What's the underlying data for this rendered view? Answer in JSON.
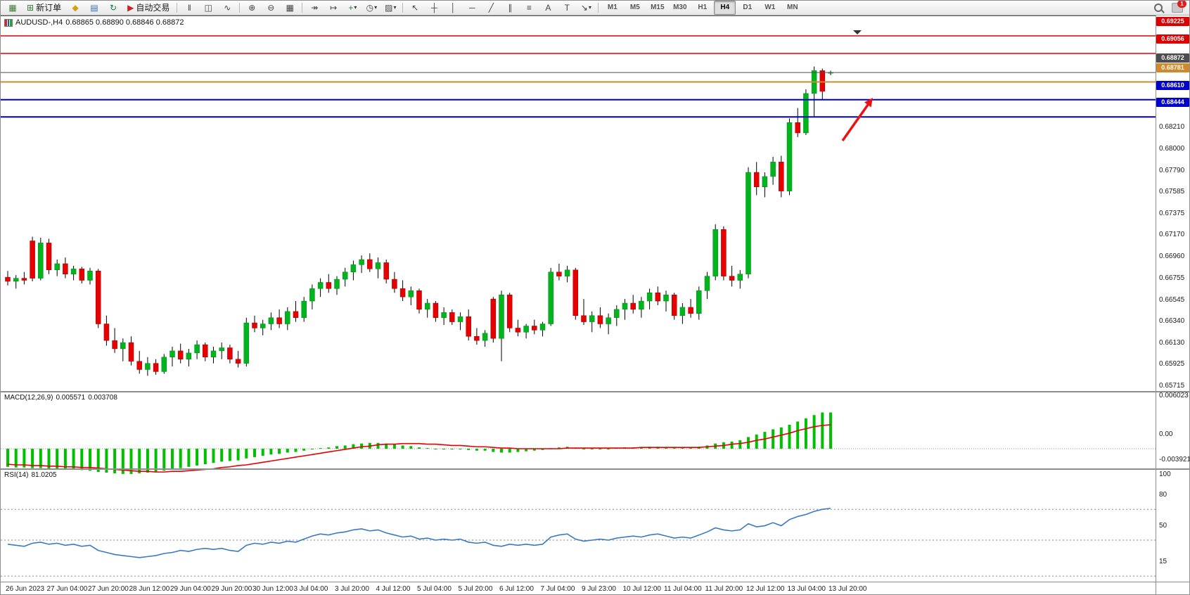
{
  "toolbar": {
    "new_order": "新订单",
    "auto_trading": "自动交易",
    "file_icons": [
      {
        "name": "new-chart-icon",
        "glyph": "▦",
        "color": "#3a7d34"
      },
      {
        "name": "market-watch-icon",
        "glyph": "◆",
        "color": "#d4a017"
      },
      {
        "name": "data-window-icon",
        "glyph": "▤",
        "color": "#3a6fb0"
      },
      {
        "name": "navigator-icon",
        "glyph": "↻",
        "color": "#0b8043"
      }
    ],
    "new_order_icon": {
      "name": "new-order-icon",
      "glyph": "⊞",
      "color": "#2e7d32"
    },
    "auto_trading_icon": {
      "name": "auto-trading-icon",
      "glyph": "▶",
      "color": "#cc2222"
    },
    "chart_type_icons": [
      {
        "name": "bar-chart-icon",
        "glyph": "‖"
      },
      {
        "name": "candlestick-chart-icon",
        "glyph": "◫"
      },
      {
        "name": "line-chart-icon",
        "glyph": "∿"
      }
    ],
    "zoom_icons": [
      {
        "name": "zoom-in-icon",
        "glyph": "⊕"
      },
      {
        "name": "zoom-out-icon",
        "glyph": "⊖"
      },
      {
        "name": "tile-windows-icon",
        "glyph": "▦"
      }
    ],
    "tool_icons": [
      {
        "name": "auto-scroll-icon",
        "glyph": "↠"
      },
      {
        "name": "chart-shift-icon",
        "glyph": "↦"
      },
      {
        "name": "indicators-icon",
        "glyph": "+",
        "color": "#2e7d32",
        "caret": true
      },
      {
        "name": "periods-icon",
        "glyph": "◷",
        "caret": true
      },
      {
        "name": "templates-icon",
        "glyph": "▨",
        "caret": true
      }
    ],
    "draw_icons": [
      {
        "name": "cursor-icon",
        "glyph": "↖"
      },
      {
        "name": "crosshair-icon",
        "glyph": "┼"
      },
      {
        "name": "vertical-line-icon",
        "glyph": "│"
      },
      {
        "name": "horizontal-line-icon",
        "glyph": "─"
      },
      {
        "name": "trendline-icon",
        "glyph": "╱"
      },
      {
        "name": "channel-icon",
        "glyph": "∥"
      },
      {
        "name": "fibonacci-icon",
        "glyph": "≡"
      },
      {
        "name": "text-icon",
        "glyph": "A"
      },
      {
        "name": "text-label-icon",
        "glyph": "T"
      },
      {
        "name": "shapes-icon",
        "glyph": "↘",
        "caret": true
      }
    ],
    "timeframes": [
      "M1",
      "M5",
      "M15",
      "M30",
      "H1",
      "H4",
      "D1",
      "W1",
      "MN"
    ],
    "active_timeframe": "H4",
    "notification_badge": "1"
  },
  "chart": {
    "title": "AUDUSD-,H4",
    "ohlc_text": "0.68865 0.68890 0.68846 0.68872",
    "price_axis": [
      "0.68210",
      "0.68000",
      "0.67790",
      "0.67585",
      "0.67375",
      "0.67170",
      "0.66960",
      "0.66755",
      "0.66545",
      "0.66340",
      "0.66130",
      "0.65925",
      "0.65715"
    ],
    "badges": [
      {
        "value": "0.69225",
        "bg": "#dd0000"
      },
      {
        "value": "0.69056",
        "bg": "#dd0000"
      },
      {
        "value": "0.68872",
        "bg": "#4d4d4d"
      },
      {
        "value": "0.68781",
        "bg": "#cf8a2d"
      },
      {
        "value": "0.68610",
        "bg": "#0000cc"
      },
      {
        "value": "0.68444",
        "bg": "#0000cc"
      }
    ],
    "time_axis": [
      "26 Jun 2023",
      "27 Jun 04:00",
      "27 Jun 20:00",
      "28 Jun 12:00",
      "29 Jun 04:00",
      "29 Jun 20:00",
      "30 Jun 12:00",
      "3 Jul 04:00",
      "3 Jul 20:00",
      "4 Jul 12:00",
      "5 Jul 04:00",
      "5 Jul 20:00",
      "6 Jul 12:00",
      "7 Jul 04:00",
      "9 Jul 23:00",
      "10 Jul 12:00",
      "11 Jul 04:00",
      "11 Jul 20:00",
      "12 Jul 12:00",
      "13 Jul 04:00",
      "13 Jul 20:00"
    ]
  },
  "chart_data": {
    "type": "candlestick",
    "symbol": "AUDUSD",
    "timeframe": "H4",
    "up_color": "#00b41e",
    "down_color": "#e60000",
    "wick_color": "#000000",
    "candles": [
      [
        0.669,
        0.6696,
        0.6682,
        0.6686
      ],
      [
        0.6686,
        0.6692,
        0.6679,
        0.6689
      ],
      [
        0.6689,
        0.6695,
        0.6683,
        0.6687
      ],
      [
        0.6725,
        0.6729,
        0.6686,
        0.6689
      ],
      [
        0.6689,
        0.6728,
        0.6687,
        0.6723
      ],
      [
        0.6723,
        0.6727,
        0.6693,
        0.6697
      ],
      [
        0.6697,
        0.6707,
        0.6691,
        0.6703
      ],
      [
        0.6703,
        0.6709,
        0.6689,
        0.6693
      ],
      [
        0.6693,
        0.6701,
        0.6687,
        0.6698
      ],
      [
        0.6698,
        0.67,
        0.6684,
        0.6687
      ],
      [
        0.6687,
        0.6699,
        0.6683,
        0.6696
      ],
      [
        0.6696,
        0.6698,
        0.6641,
        0.6645
      ],
      [
        0.6645,
        0.6653,
        0.6624,
        0.6629
      ],
      [
        0.6629,
        0.6641,
        0.6617,
        0.6621
      ],
      [
        0.6621,
        0.6631,
        0.6609,
        0.6627
      ],
      [
        0.6627,
        0.6633,
        0.6605,
        0.6609
      ],
      [
        0.6609,
        0.6619,
        0.6597,
        0.6601
      ],
      [
        0.6601,
        0.6613,
        0.6595,
        0.6607
      ],
      [
        0.6607,
        0.6611,
        0.6596,
        0.6599
      ],
      [
        0.6599,
        0.6616,
        0.6597,
        0.6613
      ],
      [
        0.6613,
        0.6623,
        0.6604,
        0.6619
      ],
      [
        0.6619,
        0.6626,
        0.6607,
        0.6611
      ],
      [
        0.6611,
        0.6621,
        0.6604,
        0.6617
      ],
      [
        0.6617,
        0.6629,
        0.6611,
        0.6625
      ],
      [
        0.6625,
        0.6627,
        0.6609,
        0.6613
      ],
      [
        0.6613,
        0.6623,
        0.6607,
        0.6619
      ],
      [
        0.6619,
        0.6627,
        0.6611,
        0.6622
      ],
      [
        0.6622,
        0.6625,
        0.6607,
        0.6611
      ],
      [
        0.6611,
        0.6619,
        0.6603,
        0.6607
      ],
      [
        0.6607,
        0.6651,
        0.6604,
        0.6646
      ],
      [
        0.6646,
        0.6653,
        0.6637,
        0.6641
      ],
      [
        0.6641,
        0.6649,
        0.6634,
        0.6645
      ],
      [
        0.6645,
        0.6656,
        0.6639,
        0.6651
      ],
      [
        0.6651,
        0.6659,
        0.6641,
        0.6645
      ],
      [
        0.6645,
        0.6661,
        0.6639,
        0.6657
      ],
      [
        0.6657,
        0.6667,
        0.6647,
        0.6651
      ],
      [
        0.6651,
        0.6671,
        0.6647,
        0.6667
      ],
      [
        0.6667,
        0.6683,
        0.6659,
        0.6679
      ],
      [
        0.6679,
        0.6689,
        0.6671,
        0.6685
      ],
      [
        0.6685,
        0.6693,
        0.6675,
        0.6679
      ],
      [
        0.6679,
        0.6691,
        0.6673,
        0.6688
      ],
      [
        0.6688,
        0.6699,
        0.6681,
        0.6695
      ],
      [
        0.6695,
        0.6706,
        0.6687,
        0.6702
      ],
      [
        0.6702,
        0.6711,
        0.6694,
        0.6707
      ],
      [
        0.6707,
        0.6713,
        0.6695,
        0.6698
      ],
      [
        0.6698,
        0.6709,
        0.6689,
        0.6704
      ],
      [
        0.6704,
        0.6707,
        0.6684,
        0.6688
      ],
      [
        0.6688,
        0.6695,
        0.6675,
        0.6679
      ],
      [
        0.6679,
        0.6687,
        0.6667,
        0.6671
      ],
      [
        0.6671,
        0.6681,
        0.6663,
        0.6677
      ],
      [
        0.6677,
        0.6679,
        0.6655,
        0.6659
      ],
      [
        0.6659,
        0.6669,
        0.6651,
        0.6665
      ],
      [
        0.6665,
        0.6667,
        0.6647,
        0.6651
      ],
      [
        0.6651,
        0.6661,
        0.6644,
        0.6656
      ],
      [
        0.6656,
        0.6659,
        0.6644,
        0.6647
      ],
      [
        0.6647,
        0.6656,
        0.6639,
        0.6652
      ],
      [
        0.6652,
        0.6659,
        0.6629,
        0.6633
      ],
      [
        0.6633,
        0.6641,
        0.6625,
        0.6629
      ],
      [
        0.6629,
        0.6639,
        0.6623,
        0.6636
      ],
      [
        0.6669,
        0.6671,
        0.6627,
        0.6631
      ],
      [
        0.6631,
        0.6677,
        0.6609,
        0.6673
      ],
      [
        0.6673,
        0.6675,
        0.6637,
        0.6641
      ],
      [
        0.6641,
        0.6649,
        0.6633,
        0.6637
      ],
      [
        0.6637,
        0.6645,
        0.6631,
        0.6643
      ],
      [
        0.6643,
        0.6649,
        0.6635,
        0.6639
      ],
      [
        0.6639,
        0.6647,
        0.6633,
        0.6645
      ],
      [
        0.6645,
        0.6699,
        0.6643,
        0.6695
      ],
      [
        0.6695,
        0.6703,
        0.6687,
        0.6691
      ],
      [
        0.6691,
        0.6701,
        0.6685,
        0.6697
      ],
      [
        0.6697,
        0.6699,
        0.6649,
        0.6653
      ],
      [
        0.6653,
        0.6669,
        0.6644,
        0.6647
      ],
      [
        0.6647,
        0.6657,
        0.6637,
        0.6653
      ],
      [
        0.6653,
        0.6661,
        0.6641,
        0.6645
      ],
      [
        0.6645,
        0.6655,
        0.6635,
        0.6651
      ],
      [
        0.6651,
        0.6663,
        0.6643,
        0.6659
      ],
      [
        0.6659,
        0.6669,
        0.6649,
        0.6665
      ],
      [
        0.6665,
        0.6673,
        0.6655,
        0.6659
      ],
      [
        0.6659,
        0.6671,
        0.6651,
        0.6667
      ],
      [
        0.6667,
        0.6679,
        0.6659,
        0.6675
      ],
      [
        0.6675,
        0.6681,
        0.6663,
        0.6667
      ],
      [
        0.6667,
        0.6677,
        0.6657,
        0.6673
      ],
      [
        0.6673,
        0.6675,
        0.6649,
        0.6653
      ],
      [
        0.6653,
        0.6665,
        0.6645,
        0.6661
      ],
      [
        0.6661,
        0.6669,
        0.6651,
        0.6655
      ],
      [
        0.6655,
        0.6681,
        0.6649,
        0.6677
      ],
      [
        0.6677,
        0.6695,
        0.6669,
        0.6691
      ],
      [
        0.6691,
        0.6741,
        0.6687,
        0.6736
      ],
      [
        0.6736,
        0.6739,
        0.6687,
        0.6691
      ],
      [
        0.6691,
        0.6701,
        0.6681,
        0.6687
      ],
      [
        0.6687,
        0.6697,
        0.6679,
        0.6693
      ],
      [
        0.6693,
        0.6796,
        0.6689,
        0.6791
      ],
      [
        0.6791,
        0.6801,
        0.6769,
        0.6777
      ],
      [
        0.6777,
        0.6791,
        0.6767,
        0.6787
      ],
      [
        0.6787,
        0.6806,
        0.6779,
        0.6801
      ],
      [
        0.6801,
        0.6807,
        0.6767,
        0.6773
      ],
      [
        0.6773,
        0.6843,
        0.6769,
        0.6839
      ],
      [
        0.6839,
        0.6853,
        0.6825,
        0.6829
      ],
      [
        0.6829,
        0.6871,
        0.6827,
        0.6867
      ],
      [
        0.6867,
        0.6893,
        0.6845,
        0.6889
      ],
      [
        0.6889,
        0.6891,
        0.6861,
        0.6869
      ],
      [
        0.68865,
        0.6889,
        0.68846,
        0.68872
      ]
    ],
    "hlines": [
      {
        "price": 0.69225,
        "color": "#dd0000",
        "width": 1.5
      },
      {
        "price": 0.69056,
        "color": "#dd0000",
        "width": 1.5
      },
      {
        "price": 0.68872,
        "color": "#4d4d4d",
        "width": 1
      },
      {
        "price": 0.68781,
        "color": "#cf8a2d",
        "width": 2
      },
      {
        "price": 0.6861,
        "color": "#0000cc",
        "width": 2
      },
      {
        "price": 0.68444,
        "color": "#0000cc",
        "width": 2
      }
    ],
    "arrow": {
      "color": "#ee1111"
    },
    "macd": {
      "label": "MACD(12,26,9)",
      "value_main": "0.005571",
      "value_signal": "0.003708",
      "scale": [
        "0.006023",
        "0.00",
        "-0.003921"
      ],
      "hist_color": "#00c000",
      "signal_color": "#e60000",
      "histogram": [
        -0.0028,
        -0.0029,
        -0.0029,
        -0.003,
        -0.003,
        -0.0031,
        -0.0031,
        -0.0032,
        -0.0032,
        -0.0033,
        -0.0034,
        -0.0036,
        -0.0037,
        -0.0038,
        -0.0039,
        -0.0039,
        -0.0038,
        -0.0037,
        -0.0036,
        -0.0034,
        -0.0032,
        -0.003,
        -0.0028,
        -0.0026,
        -0.0024,
        -0.0022,
        -0.002,
        -0.0019,
        -0.0018,
        -0.0015,
        -0.0013,
        -0.0011,
        -0.0009,
        -0.0008,
        -0.0006,
        -0.0005,
        -0.0003,
        -0.0001,
        0.0001,
        0.0002,
        0.0004,
        0.0005,
        0.0007,
        0.0008,
        0.0009,
        0.0009,
        0.0008,
        0.0007,
        0.0005,
        0.0004,
        0.0002,
        0.0001,
        0.0,
        -0.0001,
        -0.0001,
        0.0,
        -0.0002,
        -0.0003,
        -0.0003,
        -0.0005,
        -0.0006,
        -0.0006,
        -0.0005,
        -0.0004,
        -0.0003,
        -0.0002,
        0.0001,
        0.0002,
        0.0003,
        0.0001,
        -0.0001,
        -0.0001,
        0.0,
        0.0,
        0.0001,
        0.0002,
        0.0002,
        0.0002,
        0.0003,
        0.0003,
        0.0002,
        0.0002,
        0.0002,
        0.0002,
        0.0003,
        0.0005,
        0.0008,
        0.001,
        0.0011,
        0.0013,
        0.0018,
        0.0022,
        0.0026,
        0.003,
        0.0033,
        0.0037,
        0.0042,
        0.0047,
        0.0052,
        0.0056,
        0.0056
      ],
      "signal": [
        -0.0024,
        -0.0025,
        -0.0025,
        -0.0026,
        -0.0026,
        -0.0027,
        -0.0027,
        -0.0028,
        -0.0028,
        -0.0029,
        -0.0029,
        -0.003,
        -0.0031,
        -0.0032,
        -0.0033,
        -0.0034,
        -0.0035,
        -0.0035,
        -0.0036,
        -0.0036,
        -0.0035,
        -0.0035,
        -0.0034,
        -0.0033,
        -0.0032,
        -0.0031,
        -0.0029,
        -0.0028,
        -0.0026,
        -0.0025,
        -0.0023,
        -0.0021,
        -0.0019,
        -0.0017,
        -0.0015,
        -0.0013,
        -0.0011,
        -0.0009,
        -0.0007,
        -0.0005,
        -0.0003,
        -0.0001,
        0.0001,
        0.0003,
        0.0004,
        0.0006,
        0.0007,
        0.0007,
        0.0008,
        0.0008,
        0.0008,
        0.0007,
        0.0007,
        0.0006,
        0.0005,
        0.0005,
        0.0004,
        0.0003,
        0.0003,
        0.0002,
        0.0001,
        0.0001,
        0.0,
        0.0,
        0.0,
        0.0,
        0.0,
        0.0,
        0.0001,
        0.0001,
        0.0001,
        0.0001,
        0.0001,
        0.0001,
        0.0001,
        0.0001,
        0.0001,
        0.0002,
        0.0002,
        0.0002,
        0.0002,
        0.0002,
        0.0002,
        0.0002,
        0.0002,
        0.0003,
        0.0004,
        0.0005,
        0.0007,
        0.0008,
        0.001,
        0.0013,
        0.0015,
        0.0018,
        0.0021,
        0.0024,
        0.0028,
        0.0031,
        0.0034,
        0.0036,
        0.0037
      ]
    },
    "rsi": {
      "label": "RSI(14)",
      "value": "81.0205",
      "scale": [
        "100",
        "80",
        "50",
        "15"
      ],
      "levels": [
        80,
        50,
        15
      ],
      "line_color": "#3b78c3",
      "series": [
        46,
        45,
        44,
        47,
        48,
        46,
        47,
        45,
        46,
        44,
        45,
        40,
        38,
        36,
        35,
        34,
        33,
        34,
        35,
        37,
        38,
        40,
        39,
        41,
        42,
        41,
        42,
        40,
        39,
        45,
        47,
        46,
        48,
        47,
        49,
        48,
        51,
        54,
        56,
        55,
        57,
        58,
        60,
        61,
        59,
        60,
        57,
        55,
        53,
        54,
        51,
        52,
        50,
        51,
        50,
        51,
        48,
        47,
        48,
        45,
        44,
        46,
        45,
        46,
        45,
        46,
        53,
        55,
        56,
        51,
        49,
        50,
        51,
        50,
        52,
        53,
        54,
        53,
        55,
        56,
        54,
        52,
        53,
        52,
        55,
        58,
        62,
        60,
        59,
        60,
        66,
        63,
        64,
        67,
        64,
        70,
        73,
        75,
        78,
        80,
        81
      ]
    }
  }
}
